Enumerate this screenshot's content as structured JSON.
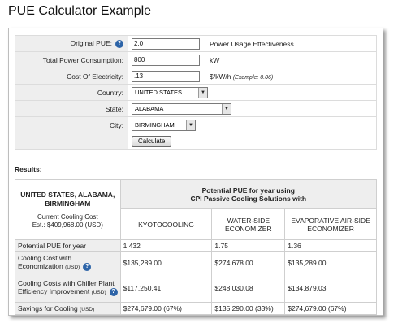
{
  "page_title": "PUE Calculator Example",
  "form": {
    "original_pue": {
      "label": "Original PUE:",
      "value": "2.0",
      "unit": "Power Usage Effectiveness"
    },
    "total_power": {
      "label": "Total Power Consumption:",
      "value": "800",
      "unit": "kW"
    },
    "cost_electricity": {
      "label": "Cost Of Electricity:",
      "value": ".13",
      "unit": "$/kW/h",
      "example": "(Example: 0.06)"
    },
    "country": {
      "label": "Country:",
      "value": "UNITED STATES"
    },
    "state": {
      "label": "State:",
      "value": "ALABAMA"
    },
    "city": {
      "label": "City:",
      "value": "BIRMINGHAM"
    },
    "calculate_label": "Calculate"
  },
  "results": {
    "label": "Results:",
    "location": "UNITED STATES, ALABAMA, BIRMINGHAM",
    "current_cost_line1": "Current Cooling Cost",
    "current_cost_line2": "Est.: $409,968.00 (USD)",
    "header_line1": "Potential PUE for year using",
    "header_line2": "CPI Passive Cooling Solutions with",
    "columns": [
      "KYOTOCOOLING",
      "WATER-SIDE ECONOMIZER",
      "EVAPORATIVE AIR-SIDE ECONOMIZER"
    ],
    "rows": [
      {
        "label": "Potential PUE for year",
        "suffix": "",
        "values": [
          "1.432",
          "1.75",
          "1.36"
        ]
      },
      {
        "label": "Cooling Cost with Economization",
        "suffix": "(USD)",
        "values": [
          "$135,289.00",
          "$274,678.00",
          "$135,289.00"
        ]
      },
      {
        "label": "Cooling Costs with Chiller Plant Efficiency Improvement",
        "suffix": "(USD)",
        "values": [
          "$117,250.41",
          "$248,030.08",
          "$134,879.03"
        ]
      },
      {
        "label": "Savings for Cooling",
        "suffix": "(USD)",
        "values": [
          "$274,679.00 (67%)",
          "$135,290.00 (33%)",
          "$274,679.00 (67%)"
        ]
      }
    ],
    "currency_unit": "(USD)"
  },
  "icons": {
    "help": "help-icon",
    "dropdown": "chevron-down-icon"
  },
  "colors": {
    "label_bg": "#eeeeee",
    "help_icon": "#2d64a8",
    "border": "#dcdcdc"
  }
}
